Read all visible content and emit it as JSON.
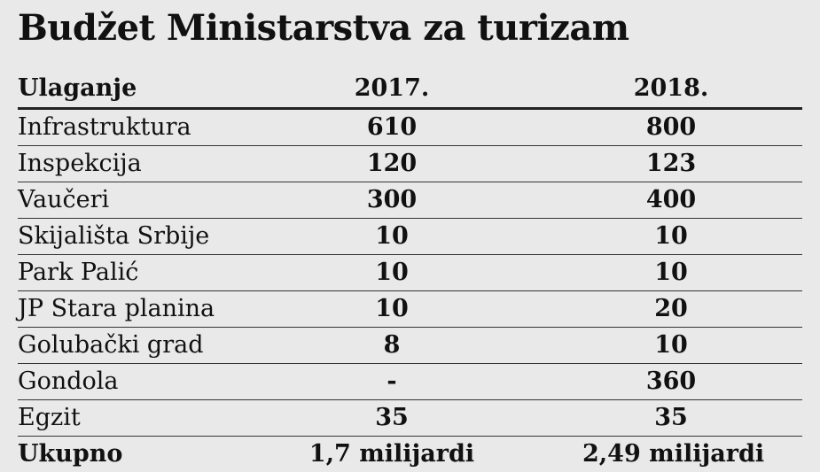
{
  "chart_data": {
    "type": "table",
    "title": "Budžet Ministarstva za turizam",
    "columns": [
      "Ulaganje",
      "2017.",
      "2018."
    ],
    "rows": [
      [
        "Infrastruktura",
        "610",
        "800"
      ],
      [
        "Inspekcija",
        "120",
        "123"
      ],
      [
        "Vaučeri",
        "300",
        "400"
      ],
      [
        "Skijališta Srbije",
        "10",
        "10"
      ],
      [
        "Park Palić",
        "10",
        "10"
      ],
      [
        "JP Stara planina",
        "10",
        "20"
      ],
      [
        "Golubački grad",
        "8",
        "10"
      ],
      [
        "Gondola",
        "-",
        "360"
      ],
      [
        "Egzit",
        "35",
        "35"
      ]
    ],
    "total": [
      "Ukupno",
      "1,7 milijardi",
      "2,49 milijardi"
    ]
  }
}
